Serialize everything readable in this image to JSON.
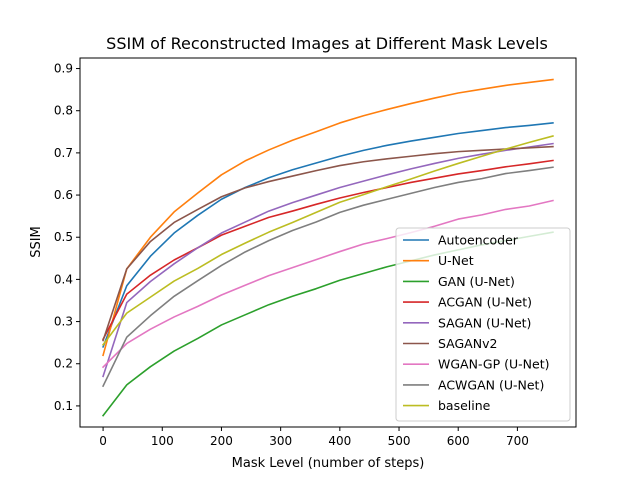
{
  "chart_data": {
    "type": "line",
    "title": "SSIM of Reconstructed Images at Different Mask Levels",
    "xlabel": "Mask Level (number of steps)",
    "ylabel": "SSIM",
    "xlim": [
      -39,
      799
    ],
    "ylim": [
      0.05,
      0.925
    ],
    "xticks": [
      0,
      100,
      200,
      300,
      400,
      500,
      600,
      700
    ],
    "yticks": [
      0.1,
      0.2,
      0.3,
      0.4,
      0.5,
      0.6,
      0.7,
      0.8,
      0.9
    ],
    "grid": false,
    "legend_position": "lower-right",
    "x": [
      0,
      40,
      80,
      120,
      160,
      200,
      240,
      280,
      320,
      360,
      400,
      440,
      480,
      520,
      560,
      600,
      640,
      680,
      720,
      760
    ],
    "series": [
      {
        "name": "Autoencoder",
        "color": "#1f77b4",
        "values": [
          0.24,
          0.385,
          0.455,
          0.51,
          0.552,
          0.59,
          0.618,
          0.641,
          0.66,
          0.676,
          0.692,
          0.706,
          0.718,
          0.728,
          0.737,
          0.746,
          0.753,
          0.76,
          0.765,
          0.771
        ]
      },
      {
        "name": "U-Net",
        "color": "#ff7f0e",
        "values": [
          0.22,
          0.425,
          0.5,
          0.56,
          0.605,
          0.648,
          0.681,
          0.707,
          0.73,
          0.75,
          0.771,
          0.788,
          0.803,
          0.817,
          0.83,
          0.842,
          0.851,
          0.86,
          0.867,
          0.874
        ]
      },
      {
        "name": "GAN (U-Net)",
        "color": "#2ca02c",
        "values": [
          0.077,
          0.15,
          0.193,
          0.23,
          0.26,
          0.292,
          0.316,
          0.34,
          0.36,
          0.378,
          0.398,
          0.414,
          0.43,
          0.444,
          0.458,
          0.47,
          0.482,
          0.492,
          0.502,
          0.512
        ]
      },
      {
        "name": "ACGAN (U-Net)",
        "color": "#d62728",
        "values": [
          0.258,
          0.365,
          0.41,
          0.446,
          0.475,
          0.505,
          0.526,
          0.547,
          0.562,
          0.578,
          0.593,
          0.606,
          0.618,
          0.63,
          0.64,
          0.65,
          0.658,
          0.667,
          0.674,
          0.682
        ]
      },
      {
        "name": "SAGAN (U-Net)",
        "color": "#9467bd",
        "values": [
          0.17,
          0.345,
          0.395,
          0.437,
          0.475,
          0.51,
          0.536,
          0.562,
          0.582,
          0.6,
          0.618,
          0.633,
          0.648,
          0.662,
          0.675,
          0.687,
          0.697,
          0.706,
          0.714,
          0.722
        ]
      },
      {
        "name": "SAGANv2",
        "color": "#8c564b",
        "values": [
          0.255,
          0.425,
          0.49,
          0.535,
          0.566,
          0.596,
          0.617,
          0.632,
          0.645,
          0.658,
          0.67,
          0.679,
          0.686,
          0.692,
          0.698,
          0.703,
          0.706,
          0.709,
          0.712,
          0.715
        ]
      },
      {
        "name": "WGAN-GP (U-Net)",
        "color": "#e377c2",
        "values": [
          0.192,
          0.248,
          0.282,
          0.311,
          0.336,
          0.363,
          0.386,
          0.409,
          0.428,
          0.447,
          0.466,
          0.484,
          0.497,
          0.511,
          0.526,
          0.543,
          0.553,
          0.566,
          0.574,
          0.587
        ]
      },
      {
        "name": "ACWGAN (U-Net)",
        "color": "#7f7f7f",
        "values": [
          0.147,
          0.263,
          0.314,
          0.36,
          0.397,
          0.433,
          0.465,
          0.492,
          0.516,
          0.536,
          0.559,
          0.576,
          0.59,
          0.604,
          0.618,
          0.63,
          0.639,
          0.651,
          0.658,
          0.666
        ]
      },
      {
        "name": "baseline",
        "color": "#bcbd22",
        "values": [
          0.245,
          0.32,
          0.358,
          0.396,
          0.426,
          0.459,
          0.486,
          0.512,
          0.535,
          0.559,
          0.583,
          0.601,
          0.62,
          0.638,
          0.657,
          0.675,
          0.692,
          0.709,
          0.725,
          0.74
        ]
      }
    ]
  }
}
